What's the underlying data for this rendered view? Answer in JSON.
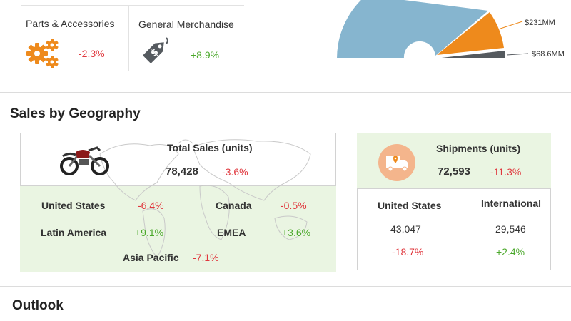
{
  "categories": [
    {
      "label": "Parts & Accessories",
      "change": "-2.3%",
      "icon": "gears-icon"
    },
    {
      "label": "General Merchandise",
      "change": "+8.9%",
      "icon": "price-tag-icon"
    }
  ],
  "donut": {
    "labels": [
      "$231MM",
      "$68.6MM"
    ],
    "colors": {
      "blue": "#86b5cf",
      "orange": "#ee8a1c",
      "gray": "#555a5f"
    }
  },
  "geography": {
    "title": "Sales by Geography",
    "total": {
      "label": "Total Sales (units)",
      "value": "78,428",
      "change": "-3.6%",
      "icon": "motorcycle-icon"
    },
    "regions": [
      {
        "name": "United States",
        "change": "-6.4%"
      },
      {
        "name": "Canada",
        "change": "-0.5%"
      },
      {
        "name": "Latin America",
        "change": "+9.1%"
      },
      {
        "name": "EMEA",
        "change": "+3.6%"
      },
      {
        "name": "Asia Pacific",
        "change": "-7.1%"
      }
    ]
  },
  "shipments": {
    "label": "Shipments (units)",
    "value": "72,593",
    "change": "-11.3%",
    "icon": "delivery-truck-icon",
    "columns": [
      {
        "name": "United States",
        "value": "43,047",
        "change": "-18.7%"
      },
      {
        "name": "International",
        "value": "29,546",
        "change": "+2.4%"
      }
    ]
  },
  "outlook": {
    "title": "Outlook"
  },
  "colors": {
    "negative": "#e0383e",
    "positive": "#4aa82a",
    "green_bg": "#eaf5e2",
    "icon_orange": "#ee8a1c"
  }
}
